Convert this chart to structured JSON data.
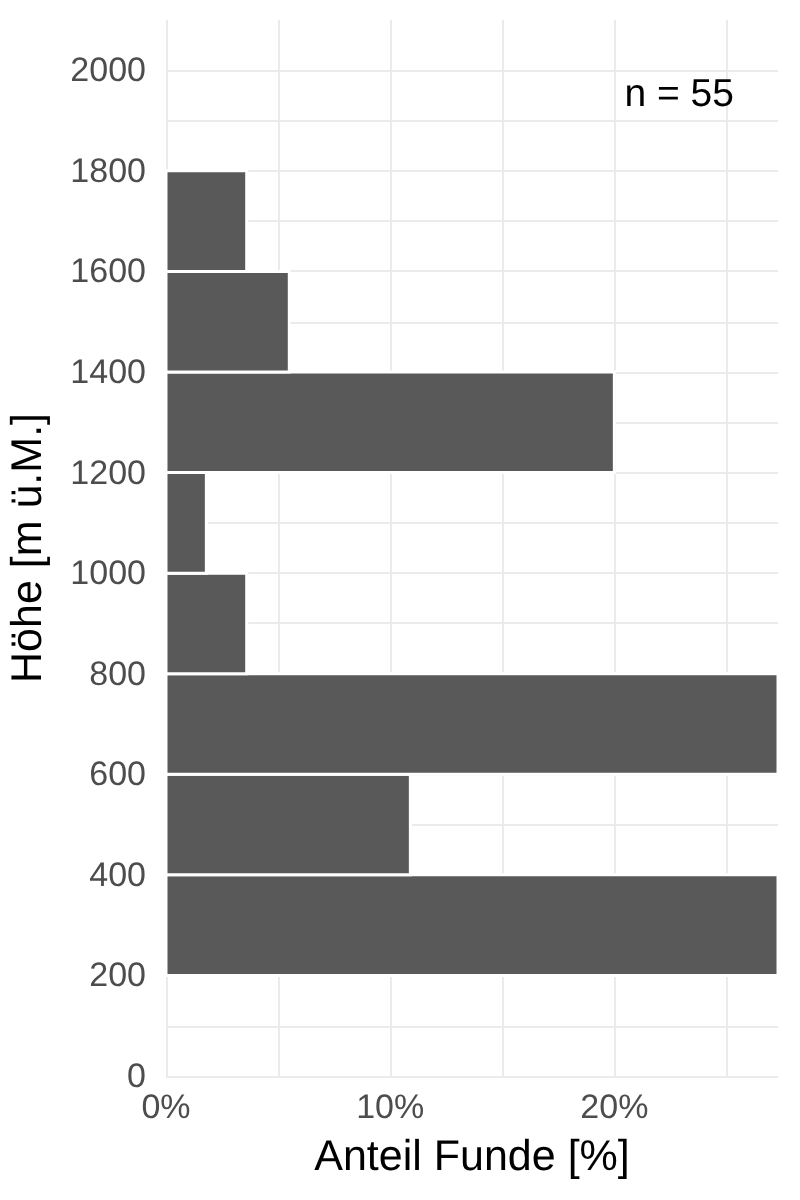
{
  "chart_data": {
    "type": "histogram",
    "orientation": "horizontal",
    "bins": [
      200,
      400,
      600,
      800,
      1000,
      1200,
      1400,
      1600,
      1800
    ],
    "values": [
      27.3,
      10.9,
      27.3,
      3.6,
      1.8,
      20,
      5.5,
      3.6
    ],
    "color": "#595959",
    "xlabel": "Anteil Funde [%]",
    "ylabel": "Höhe [m ü.M.]",
    "xlim": [
      0,
      27.3
    ],
    "xticks": [
      {
        "value": 0,
        "label": "0%"
      },
      {
        "value": 5,
        "label": null
      },
      {
        "value": 10,
        "label": "10%"
      },
      {
        "value": 15,
        "label": null
      },
      {
        "value": 20,
        "label": "20%"
      },
      {
        "value": 25,
        "label": null
      }
    ],
    "ylim": [
      0,
      2100
    ],
    "yticks": [
      0,
      {
        "value": 100,
        "label": null
      },
      200,
      400,
      {
        "value": 500,
        "label": null
      },
      600,
      800,
      {
        "value": 900,
        "label": null
      },
      1000,
      {
        "value": 1100,
        "label": null
      },
      1200,
      {
        "value": 1300,
        "label": null
      },
      1400,
      {
        "value": 1500,
        "label": null
      },
      1600,
      {
        "value": 1700,
        "label": null
      },
      1800,
      {
        "value": 1900,
        "label": null
      },
      2000
    ],
    "grid": true,
    "annotations": [
      "n = 55"
    ]
  }
}
